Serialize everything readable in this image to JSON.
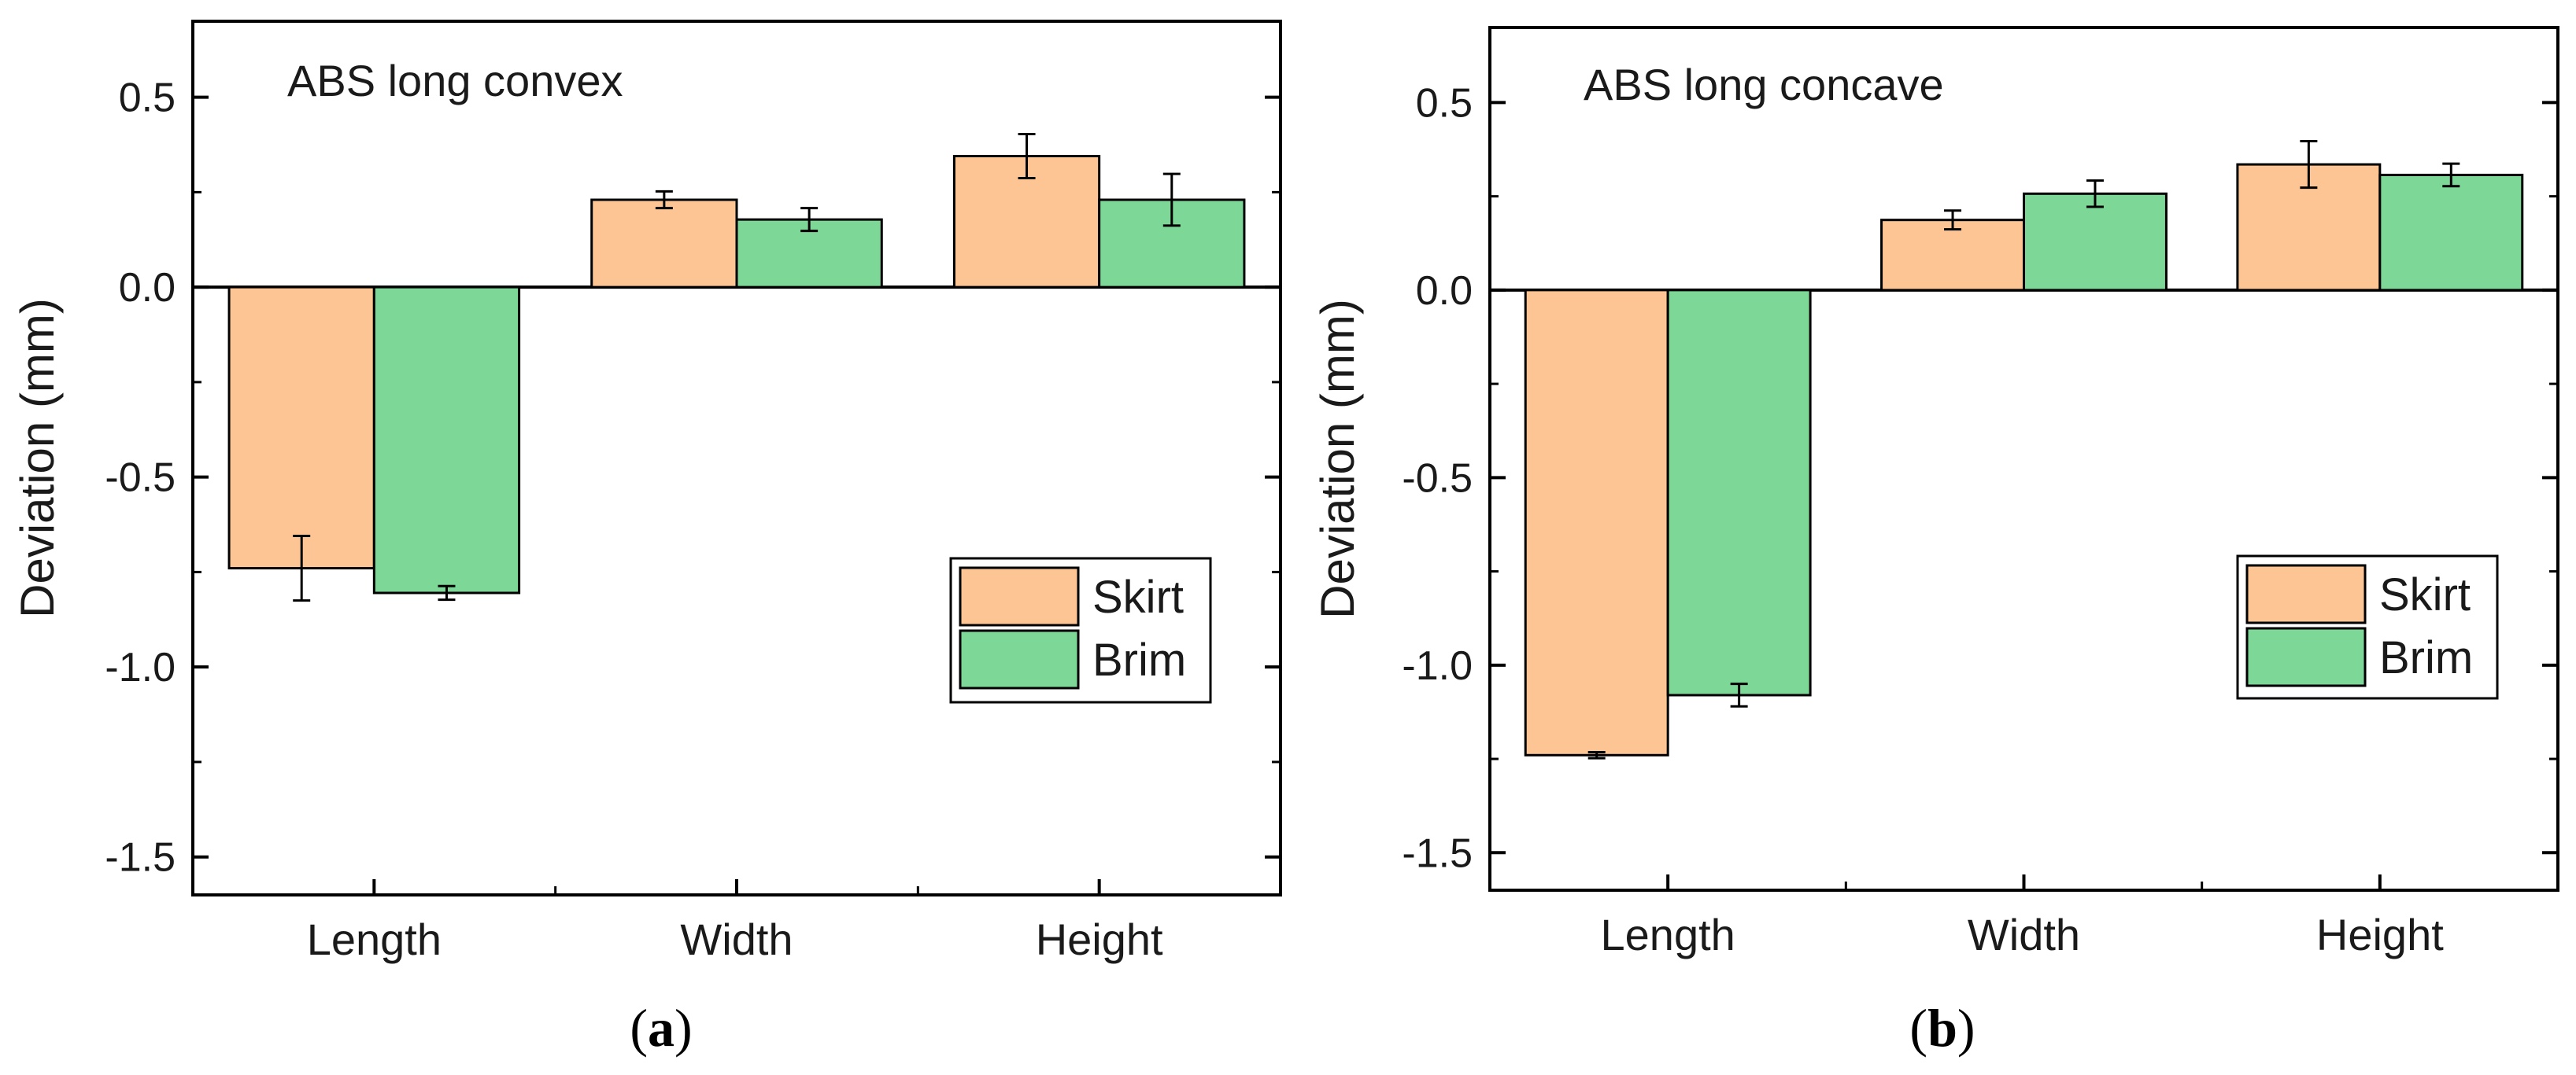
{
  "chart_data": [
    {
      "type": "bar",
      "title": "ABS long convex",
      "caption_letter": "a",
      "xlabel": "",
      "ylabel": "Deviation (mm)",
      "categories": [
        "Length",
        "Width",
        "Height"
      ],
      "ylim": [
        -1.6,
        0.7
      ],
      "yticks": [
        0.5,
        0.0,
        -0.5,
        -1.0,
        -1.5
      ],
      "ytick_labels": [
        "0.5",
        "0.0",
        "-0.5",
        "-1.0",
        "-1.5"
      ],
      "legend_position": "right",
      "series": [
        {
          "name": "Skirt",
          "color": "#FDC594",
          "values": [
            -0.74,
            0.23,
            0.345
          ],
          "errors": [
            0.085,
            0.022,
            0.058
          ]
        },
        {
          "name": "Brim",
          "color": "#7DD897",
          "values": [
            -0.805,
            0.178,
            0.23
          ],
          "errors": [
            0.018,
            0.03,
            0.068
          ]
        }
      ]
    },
    {
      "type": "bar",
      "title": "ABS long concave",
      "caption_letter": "b",
      "xlabel": "",
      "ylabel": "Deviation (mm)",
      "categories": [
        "Length",
        "Width",
        "Height"
      ],
      "ylim": [
        -1.6,
        0.7
      ],
      "yticks": [
        0.5,
        0.0,
        -0.5,
        -1.0,
        -1.5
      ],
      "ytick_labels": [
        "0.5",
        "0.0",
        "-0.5",
        "-1.0",
        "-1.5"
      ],
      "legend_position": "right",
      "series": [
        {
          "name": "Skirt",
          "color": "#FDC594",
          "values": [
            -1.24,
            0.187,
            0.335
          ],
          "errors": [
            0.008,
            0.025,
            0.062
          ]
        },
        {
          "name": "Brim",
          "color": "#7DD897",
          "values": [
            -1.08,
            0.257,
            0.307
          ],
          "errors": [
            0.03,
            0.035,
            0.03
          ]
        }
      ]
    }
  ]
}
